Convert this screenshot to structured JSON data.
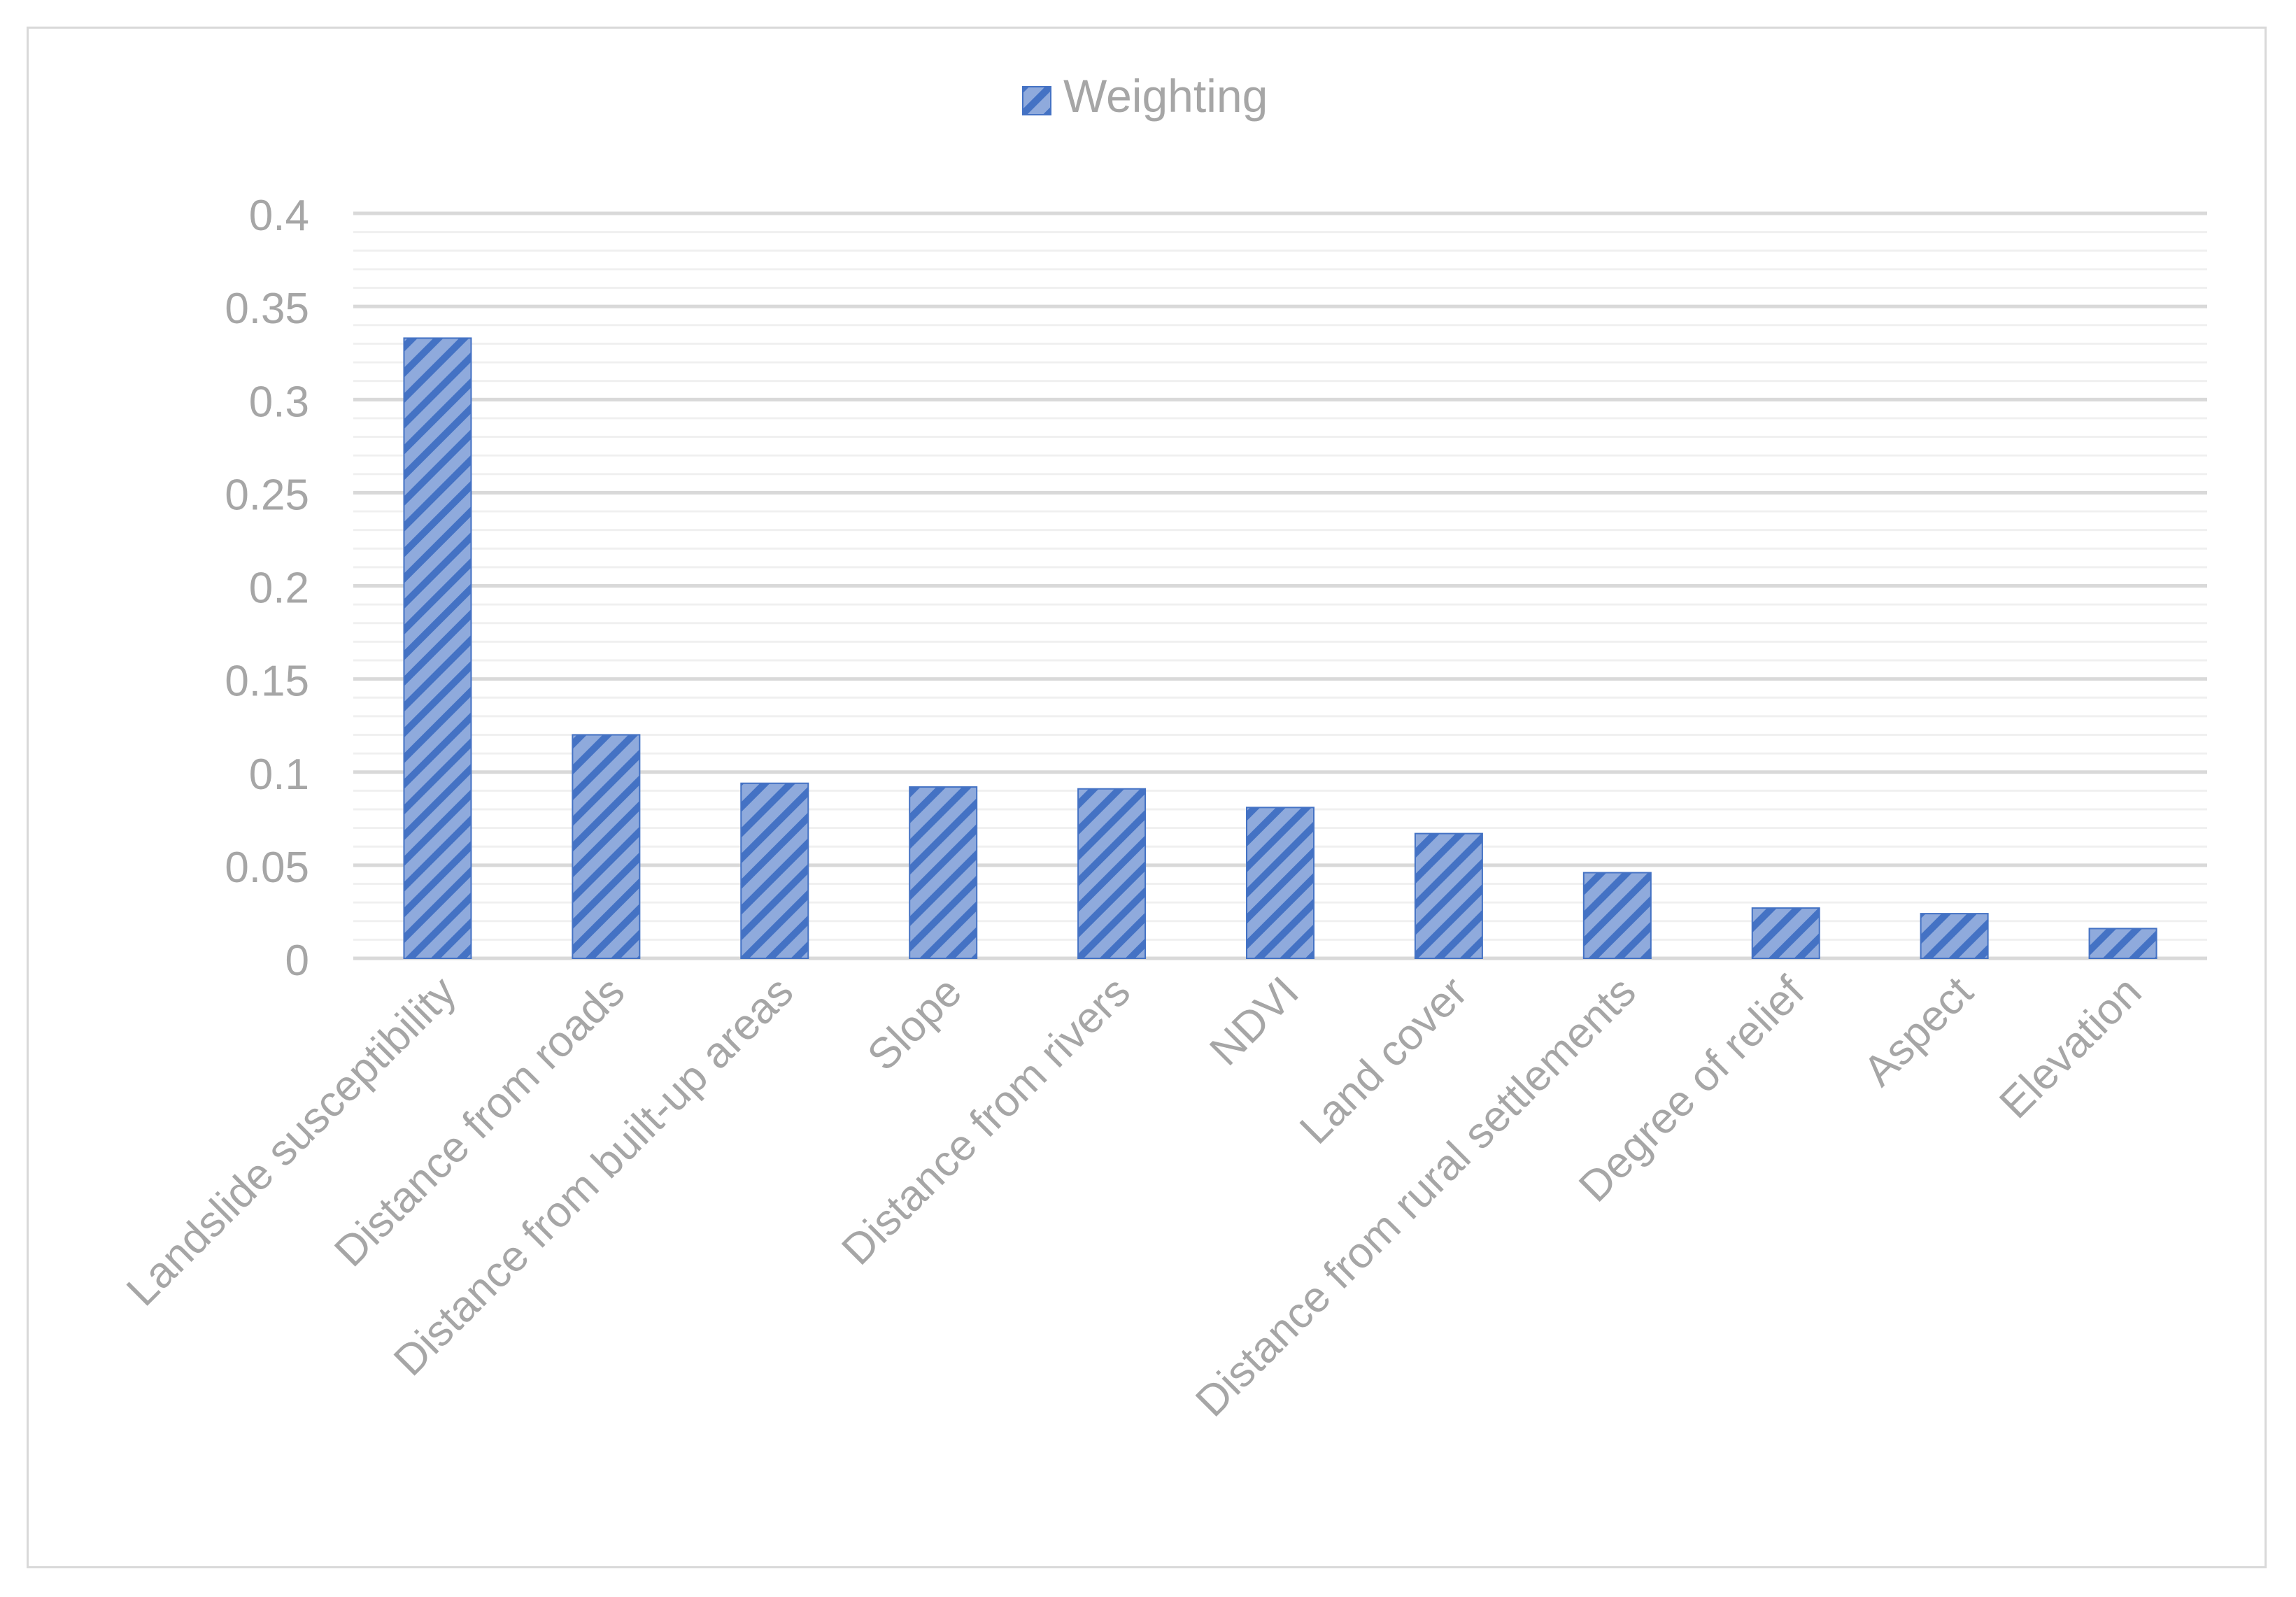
{
  "chart_data": {
    "type": "bar",
    "title": "",
    "xlabel": "",
    "ylabel": "",
    "ylim": [
      0,
      0.4
    ],
    "yticks": [
      "0",
      "0.05",
      "0.1",
      "0.15",
      "0.2",
      "0.25",
      "0.3",
      "0.35",
      "0.4"
    ],
    "ytick_values": [
      0,
      0.05,
      0.1,
      0.15,
      0.2,
      0.25,
      0.3,
      0.35,
      0.4
    ],
    "grid": true,
    "legend": {
      "position": "top-center",
      "entries": [
        "Weighting"
      ]
    },
    "categories": [
      "Landslide susceptibility",
      "Distance from roads",
      "Distance from built-up areas",
      "Slope",
      "Distance from rivers",
      "NDVI",
      "Land cover",
      "Distance from rural settlements",
      "Degree of relief",
      "Aspect",
      "Elevation"
    ],
    "series": [
      {
        "name": "Weighting",
        "color": "#4472c4",
        "fill_color": "#8faadc",
        "pattern": "diagonal-hatch",
        "values": [
          0.333,
          0.12,
          0.094,
          0.092,
          0.091,
          0.081,
          0.067,
          0.046,
          0.027,
          0.024,
          0.016
        ]
      }
    ]
  }
}
